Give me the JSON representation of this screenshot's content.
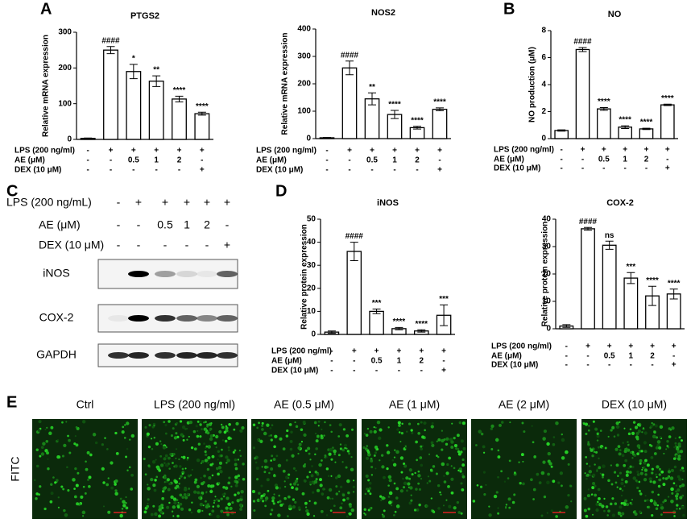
{
  "panel_labels": [
    "A",
    "B",
    "C",
    "D",
    "E"
  ],
  "chart_data": [
    {
      "type": "bar",
      "title": "PTGS2",
      "y_label": "Relative mRNA expression",
      "color": "#ffffff",
      "edgecolor": "#000000",
      "values": [
        3,
        250,
        190,
        163,
        113,
        72
      ],
      "errors": [
        1,
        10,
        20,
        15,
        8,
        4
      ],
      "annotations": [
        null,
        "####",
        "*",
        "**",
        "****",
        "****"
      ],
      "ylim": [
        0,
        300
      ],
      "yticks": [
        0,
        100,
        200,
        300
      ],
      "treatments": [
        {
          "label": "LPS (200 ng/ml)",
          "levels": [
            "-",
            "+",
            "+",
            "+",
            "+",
            "+"
          ]
        },
        {
          "label": "AE (μM)",
          "levels": [
            "-",
            "-",
            "0.5",
            "1",
            "2",
            "-"
          ]
        },
        {
          "label": "DEX (10 μM)",
          "levels": [
            "-",
            "-",
            "-",
            "-",
            "-",
            "+"
          ]
        }
      ]
    },
    {
      "type": "bar",
      "title": "NOS2",
      "y_label": "Relative mRNA expression",
      "color": "#ffffff",
      "edgecolor": "#000000",
      "values": [
        3,
        258,
        145,
        88,
        40,
        107
      ],
      "errors": [
        1,
        25,
        22,
        15,
        5,
        5
      ],
      "annotations": [
        null,
        "####",
        "**",
        "****",
        "****",
        "****"
      ],
      "ylim": [
        0,
        400
      ],
      "yticks": [
        0,
        100,
        200,
        300,
        400
      ],
      "treatments": [
        {
          "label": "LPS (200 ng/ml)",
          "levels": [
            "-",
            "+",
            "+",
            "+",
            "+",
            "+"
          ]
        },
        {
          "label": "AE (μM)",
          "levels": [
            "-",
            "-",
            "0.5",
            "1",
            "2",
            "-"
          ]
        },
        {
          "label": "DEX (10 μM)",
          "levels": [
            "-",
            "-",
            "-",
            "-",
            "-",
            "+"
          ]
        }
      ]
    },
    {
      "type": "bar",
      "title": "NO",
      "y_label": "NO production (μM)",
      "color": "#ffffff",
      "edgecolor": "#000000",
      "values": [
        0.6,
        6.6,
        2.2,
        0.85,
        0.72,
        2.5
      ],
      "errors": [
        0.05,
        0.15,
        0.1,
        0.1,
        0.05,
        0.05
      ],
      "annotations": [
        null,
        "####",
        "****",
        "****",
        "****",
        "****"
      ],
      "ylim": [
        0,
        8
      ],
      "yticks": [
        0,
        2,
        4,
        6,
        8
      ],
      "treatments": [
        {
          "label": "LPS (200 ng/ml)",
          "levels": [
            "-",
            "+",
            "+",
            "+",
            "+",
            "+"
          ]
        },
        {
          "label": "AE (μM)",
          "levels": [
            "-",
            "-",
            "0.5",
            "1",
            "2",
            "-"
          ]
        },
        {
          "label": "DEX (10 μM)",
          "levels": [
            "-",
            "-",
            "-",
            "-",
            "-",
            "+"
          ]
        }
      ]
    },
    {
      "type": "bar",
      "title": "iNOS",
      "y_label": "Relative protein expression",
      "color": "#ffffff",
      "edgecolor": "#000000",
      "values": [
        1,
        36,
        10,
        2.5,
        1.5,
        8.3
      ],
      "errors": [
        0.5,
        4,
        1,
        0.5,
        0.5,
        4.5
      ],
      "annotations": [
        null,
        "####",
        "***",
        "****",
        "****",
        "***"
      ],
      "ylim": [
        0,
        50
      ],
      "yticks": [
        0,
        10,
        20,
        30,
        40,
        50
      ],
      "treatments": [
        {
          "label": "LPS (200 ng/ml)",
          "levels": [
            "-",
            "+",
            "+",
            "+",
            "+",
            "+"
          ]
        },
        {
          "label": "AE (μM)",
          "levels": [
            "-",
            "-",
            "0.5",
            "1",
            "2",
            "-"
          ]
        },
        {
          "label": "DEX (10 μM)",
          "levels": [
            "-",
            "-",
            "-",
            "-",
            "-",
            "+"
          ]
        }
      ]
    },
    {
      "type": "bar",
      "title": "COX-2",
      "y_label": "Relative protein expression",
      "color": "#ffffff",
      "edgecolor": "#000000",
      "values": [
        1,
        36.5,
        30.5,
        18.5,
        12,
        12.7
      ],
      "errors": [
        0.5,
        0.5,
        1.5,
        2,
        3.5,
        1.8
      ],
      "annotations": [
        null,
        "####",
        "ns",
        "***",
        "****",
        "****"
      ],
      "ylim": [
        0,
        40
      ],
      "yticks": [
        0,
        10,
        20,
        30,
        40
      ],
      "treatments": [
        {
          "label": "LPS (200 ng/ml)",
          "levels": [
            "-",
            "+",
            "+",
            "+",
            "+",
            "+"
          ]
        },
        {
          "label": "AE (μM)",
          "levels": [
            "-",
            "-",
            "0.5",
            "1",
            "2",
            "-"
          ]
        },
        {
          "label": "DEX (10 μM)",
          "levels": [
            "-",
            "-",
            "-",
            "-",
            "-",
            "+"
          ]
        }
      ]
    }
  ],
  "blot": {
    "treatments": [
      {
        "label": "LPS (200 ng/mL)",
        "levels": [
          "-",
          "+",
          "+",
          "+",
          "+",
          "+"
        ]
      },
      {
        "label": "AE (μM)",
        "levels": [
          "-",
          "-",
          "0.5",
          "1",
          "2",
          "-"
        ]
      },
      {
        "label": "DEX (10 μM)",
        "levels": [
          "-",
          "-",
          "-",
          "-",
          "-",
          "+"
        ]
      }
    ],
    "bands": [
      "iNOS",
      "COX-2",
      "GAPDH"
    ]
  },
  "microscopy": {
    "row_label": "FITC",
    "columns": [
      "Ctrl",
      "LPS (200 ng/ml)",
      "AE (0.5 μM)",
      "AE (1 μM)",
      "AE (2 μM)",
      "DEX (10 μM)"
    ]
  }
}
